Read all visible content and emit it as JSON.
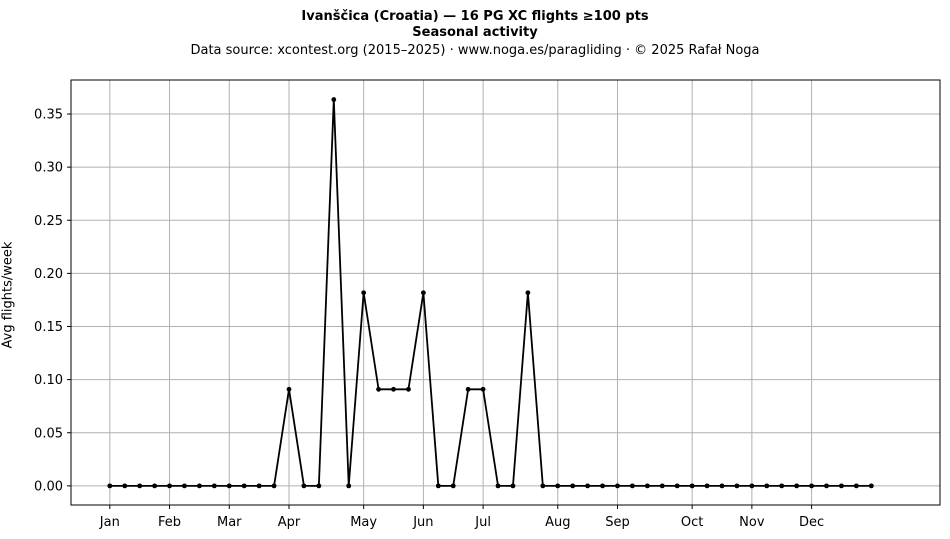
{
  "header": {
    "title": "Ivanščica (Croatia)  —  16 PG XC flights ≥100 pts",
    "subtitle": "Seasonal activity",
    "source": "Data source: xcontest.org (2015–2025)  ·  www.noga.es/paragliding  ·  © 2025 Rafał Noga"
  },
  "chart_data": {
    "type": "line",
    "title": "Ivanščica (Croatia)  —  16 PG XC flights ≥100 pts",
    "subtitle": "Seasonal activity",
    "xlabel": "",
    "ylabel": "Avg flights/week",
    "x_unit": "week of year",
    "x_ticks": [
      {
        "label": "Jan",
        "week": 1
      },
      {
        "label": "Feb",
        "week": 5
      },
      {
        "label": "Mar",
        "week": 9
      },
      {
        "label": "Apr",
        "week": 13
      },
      {
        "label": "May",
        "week": 18
      },
      {
        "label": "Jun",
        "week": 22
      },
      {
        "label": "Jul",
        "week": 26
      },
      {
        "label": "Aug",
        "week": 31
      },
      {
        "label": "Sep",
        "week": 35
      },
      {
        "label": "Oct",
        "week": 40
      },
      {
        "label": "Nov",
        "week": 44
      },
      {
        "label": "Dec",
        "week": 48
      }
    ],
    "y_ticks": [
      0,
      0.05,
      0.1,
      0.15,
      0.2,
      0.25,
      0.3,
      0.35
    ],
    "y_tick_labels": [
      "0.00",
      "0.05",
      "0.10",
      "0.15",
      "0.20",
      "0.25",
      "0.30",
      "0.35"
    ],
    "xlim": [
      -1.6,
      56.6
    ],
    "ylim": [
      -0.018,
      0.382
    ],
    "grid": true,
    "line_color": "#000000",
    "grid_color": "#b0b0b0",
    "series": [
      {
        "x": [
          1,
          2,
          3,
          4,
          5,
          6,
          7,
          8,
          9,
          10,
          11,
          12,
          13,
          14,
          15,
          16,
          17,
          18,
          19,
          20,
          21,
          22,
          23,
          24,
          25,
          26,
          27,
          28,
          29,
          30,
          31,
          32,
          33,
          34,
          35,
          36,
          37,
          38,
          39,
          40,
          41,
          42,
          43,
          44,
          45,
          46,
          47,
          48,
          49,
          50,
          51,
          52
        ],
        "values": [
          0,
          0,
          0,
          0,
          0,
          0,
          0,
          0,
          0,
          0,
          0,
          0,
          0.0909,
          0,
          0,
          0.3636,
          0,
          0.1818,
          0.0909,
          0.0909,
          0.0909,
          0.1818,
          0,
          0,
          0.0909,
          0.0909,
          0,
          0,
          0.1818,
          0,
          0,
          0,
          0,
          0,
          0,
          0,
          0,
          0,
          0,
          0,
          0,
          0,
          0,
          0,
          0,
          0,
          0,
          0,
          0,
          0,
          0,
          0
        ]
      }
    ]
  }
}
